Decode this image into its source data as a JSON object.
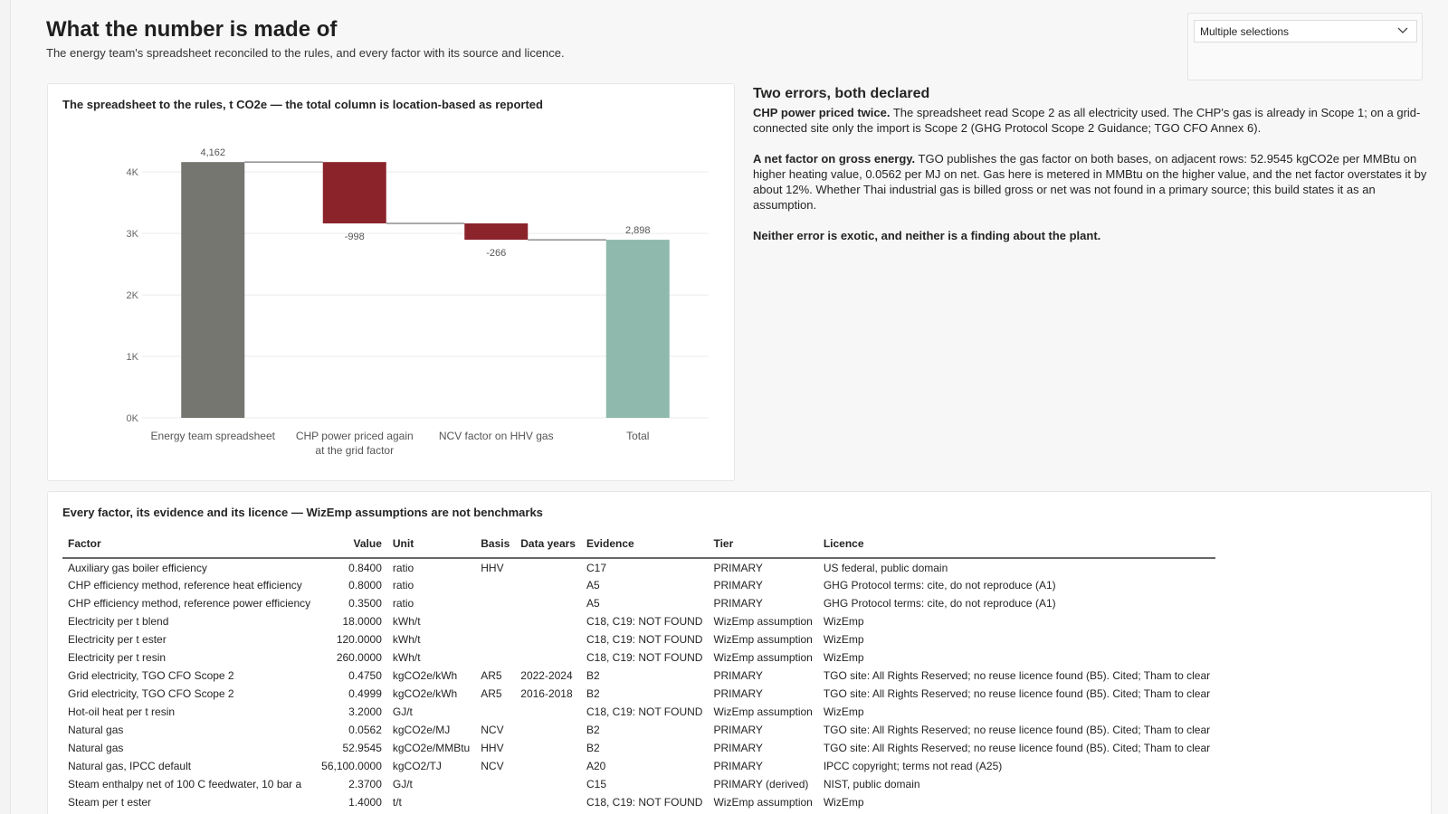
{
  "page": {
    "title": "What the number is made of",
    "subtitle": "The energy team's spreadsheet reconciled to the rules, and every factor with its source and licence."
  },
  "slicer": {
    "value": "Multiple selections",
    "icon": "chevron-down-icon"
  },
  "chart": {
    "title": "The spreadsheet to the rules, t CO2e — the total column is location-based as reported"
  },
  "chart_data": {
    "type": "bar",
    "subtype": "waterfall",
    "categories": [
      "Energy team spreadsheet",
      "CHP power priced again at the grid factor",
      "NCV factor on HHV gas",
      "Total"
    ],
    "values": [
      4162,
      -998,
      -266,
      2898
    ],
    "data_labels": [
      "4,162",
      "-998",
      "-266",
      "2,898"
    ],
    "kinds": [
      "start",
      "decrease",
      "decrease",
      "total"
    ],
    "yticks": [
      "0K",
      "1K",
      "2K",
      "3K",
      "4K"
    ],
    "ylim": [
      0,
      4400
    ],
    "grid": true,
    "colors": {
      "start": "#767671",
      "decrease": "#8b232b",
      "total": "#8fb9ac"
    }
  },
  "narrative": {
    "heading": "Two errors, both declared",
    "p1_bold": "CHP power priced twice.",
    "p1_text": " The spreadsheet read Scope 2 as all electricity used. The CHP's gas is already in Scope 1; on a grid-connected site only the import is Scope 2 (GHG Protocol Scope 2 Guidance; TGO CFO Annex 6).",
    "p2_bold": "A net factor on gross energy.",
    "p2_text": " TGO publishes the gas factor on both bases, on adjacent rows: 52.9545 kgCO2e per MMBtu on higher heating value, 0.0562 per MJ on net. Gas here is metered in MMBtu on the higher value, and the net factor overstates it by about 12%. Whether Thai industrial gas is billed gross or net was not found in a primary source; this build states it as an assumption.",
    "p3_bold": "Neither error is exotic, and neither is a finding about the plant."
  },
  "table": {
    "title": "Every factor, its evidence and its licence — WizEmp assumptions are not benchmarks",
    "headers": [
      "Factor",
      "Value",
      "Unit",
      "Basis",
      "Data years",
      "Evidence",
      "Tier",
      "Licence"
    ],
    "rows": [
      [
        "Auxiliary gas boiler efficiency",
        "0.8400",
        "ratio",
        "HHV",
        "",
        "C17",
        "PRIMARY",
        "US federal, public domain"
      ],
      [
        "CHP efficiency method, reference heat efficiency",
        "0.8000",
        "ratio",
        "",
        "",
        "A5",
        "PRIMARY",
        "GHG Protocol terms: cite, do not reproduce (A1)"
      ],
      [
        "CHP efficiency method, reference power efficiency",
        "0.3500",
        "ratio",
        "",
        "",
        "A5",
        "PRIMARY",
        "GHG Protocol terms: cite, do not reproduce (A1)"
      ],
      [
        "Electricity per t blend",
        "18.0000",
        "kWh/t",
        "",
        "",
        "C18, C19: NOT FOUND",
        "WizEmp assumption",
        "WizEmp"
      ],
      [
        "Electricity per t ester",
        "120.0000",
        "kWh/t",
        "",
        "",
        "C18, C19: NOT FOUND",
        "WizEmp assumption",
        "WizEmp"
      ],
      [
        "Electricity per t resin",
        "260.0000",
        "kWh/t",
        "",
        "",
        "C18, C19: NOT FOUND",
        "WizEmp assumption",
        "WizEmp"
      ],
      [
        "Grid electricity, TGO CFO Scope 2",
        "0.4750",
        "kgCO2e/kWh",
        "AR5",
        "2022-2024",
        "B2",
        "PRIMARY",
        "TGO site: All Rights Reserved; no reuse licence found (B5). Cited; Tham to clear"
      ],
      [
        "Grid electricity, TGO CFO Scope 2",
        "0.4999",
        "kgCO2e/kWh",
        "AR5",
        "2016-2018",
        "B2",
        "PRIMARY",
        "TGO site: All Rights Reserved; no reuse licence found (B5). Cited; Tham to clear"
      ],
      [
        "Hot-oil heat per t resin",
        "3.2000",
        "GJ/t",
        "",
        "",
        "C18, C19: NOT FOUND",
        "WizEmp assumption",
        "WizEmp"
      ],
      [
        "Natural gas",
        "0.0562",
        "kgCO2e/MJ",
        "NCV",
        "",
        "B2",
        "PRIMARY",
        "TGO site: All Rights Reserved; no reuse licence found (B5). Cited; Tham to clear"
      ],
      [
        "Natural gas",
        "52.9545",
        "kgCO2e/MMBtu",
        "HHV",
        "",
        "B2",
        "PRIMARY",
        "TGO site: All Rights Reserved; no reuse licence found (B5). Cited; Tham to clear"
      ],
      [
        "Natural gas, IPCC default",
        "56,100.0000",
        "kgCO2/TJ",
        "NCV",
        "",
        "A20",
        "PRIMARY",
        "IPCC copyright; terms not read (A25)"
      ],
      [
        "Steam enthalpy net of 100 C feedwater, 10 bar a",
        "2.3700",
        "GJ/t",
        "",
        "",
        "C15",
        "PRIMARY (derived)",
        "NIST, public domain"
      ],
      [
        "Steam per t ester",
        "1.4000",
        "t/t",
        "",
        "",
        "C18, C19: NOT FOUND",
        "WizEmp assumption",
        "WizEmp"
      ]
    ]
  }
}
